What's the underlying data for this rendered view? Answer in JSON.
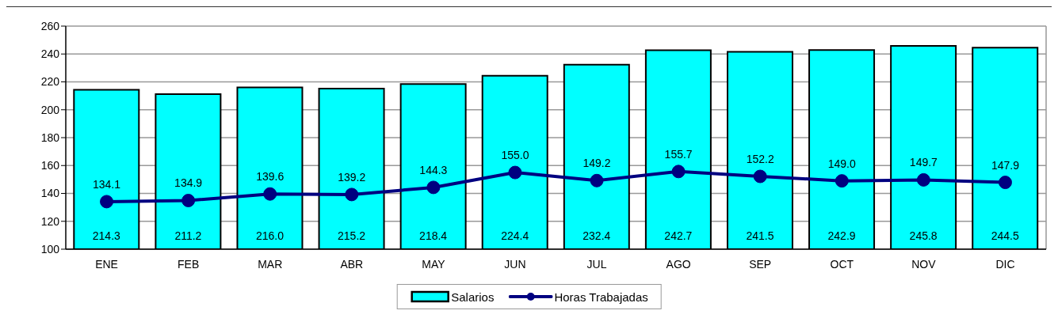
{
  "chart_data": {
    "type": "bar",
    "categories": [
      "ENE",
      "FEB",
      "MAR",
      "ABR",
      "MAY",
      "JUN",
      "JUL",
      "AGO",
      "SEP",
      "OCT",
      "NOV",
      "DIC"
    ],
    "series": [
      {
        "name": "Salarios",
        "color": "#00ffff",
        "values": [
          214.3,
          211.2,
          216.0,
          215.2,
          218.4,
          224.4,
          232.4,
          242.7,
          241.5,
          242.9,
          245.8,
          244.5
        ],
        "value_labels": [
          "214.3",
          "211.2",
          "216.0",
          "215.2",
          "218.4",
          "224.4",
          "232.4",
          "242.7",
          "241.5",
          "242.9",
          "245.8",
          "244.5"
        ]
      },
      {
        "name": "Horas Trabajadas",
        "type": "line",
        "color": "#000080",
        "marker": "circle",
        "line_style": "solid",
        "values": [
          134.1,
          134.9,
          139.6,
          139.2,
          144.3,
          155.0,
          149.2,
          155.7,
          152.2,
          149.0,
          149.7,
          147.9
        ],
        "value_labels": [
          "134.1",
          "134.9",
          "139.6",
          "139.2",
          "144.3",
          "155.0",
          "149.2",
          "155.7",
          "152.2",
          "149.0",
          "149.7",
          "147.9"
        ]
      }
    ],
    "ylim": [
      100,
      260
    ],
    "yticks": [
      100,
      120,
      140,
      160,
      180,
      200,
      220,
      240,
      260
    ],
    "grid": "y",
    "legend": "bottom"
  }
}
